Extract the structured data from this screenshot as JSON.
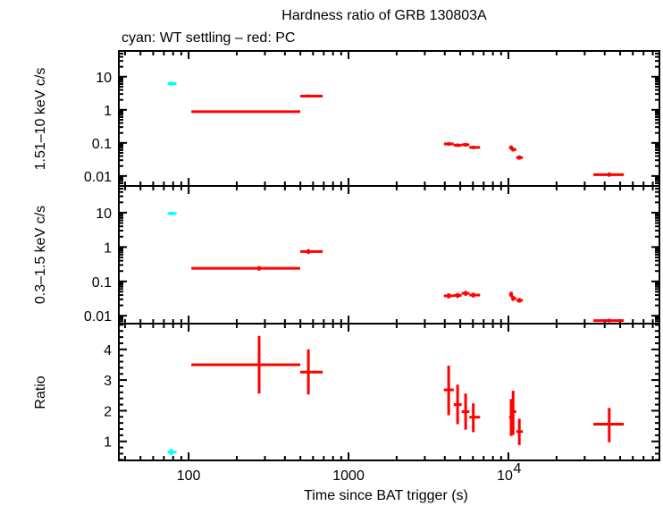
{
  "chart_data": {
    "type": "scatter",
    "title": "Hardness ratio of GRB 130803A",
    "subtitle": "cyan: WT settling – red: PC",
    "xlabel": "Time since BAT trigger (s)",
    "xscale": "log",
    "xlim": [
      36.6,
      88000
    ],
    "x_ticks": [
      {
        "value": 100,
        "label": "100"
      },
      {
        "value": 1000,
        "label": "1000"
      },
      {
        "value": 10000,
        "label": "10⁴"
      }
    ],
    "colors": {
      "WT": "#00ffff",
      "PC": "#ff0000",
      "frame": "#000000"
    },
    "panels": [
      {
        "id": "hard",
        "ylabel": "1.51–10 keV c/s",
        "yscale": "log",
        "ylim": [
          0.005,
          60
        ],
        "y_ticks": [
          {
            "value": 10,
            "label": "10"
          },
          {
            "value": 1,
            "label": "1"
          },
          {
            "value": 0.1,
            "label": "0.1"
          },
          {
            "value": 0.01,
            "label": "0.01"
          }
        ],
        "series": [
          {
            "name": "WT settling",
            "color_key": "WT",
            "points": [
              {
                "x": 78,
                "xlo": 74,
                "xhi": 84,
                "y": 6.2,
                "ylo": 5.3,
                "yhi": 7.2
              }
            ]
          },
          {
            "name": "PC",
            "color_key": "PC",
            "points": [
              {
                "x": 276,
                "xlo": 104,
                "xhi": 499,
                "y": 0.88,
                "ylo": 0.82,
                "yhi": 0.94
              },
              {
                "x": 561,
                "xlo": 499,
                "xhi": 689,
                "y": 2.6,
                "ylo": 2.35,
                "yhi": 2.9
              },
              {
                "x": 4230,
                "xlo": 3950,
                "xhi": 4550,
                "y": 0.093,
                "ylo": 0.082,
                "yhi": 0.105
              },
              {
                "x": 4810,
                "xlo": 4550,
                "xhi": 5100,
                "y": 0.085,
                "ylo": 0.075,
                "yhi": 0.096
              },
              {
                "x": 5400,
                "xlo": 5100,
                "xhi": 5700,
                "y": 0.088,
                "ylo": 0.077,
                "yhi": 0.1
              },
              {
                "x": 6030,
                "xlo": 5700,
                "xhi": 6650,
                "y": 0.073,
                "ylo": 0.065,
                "yhi": 0.082
              },
              {
                "x": 10400,
                "xlo": 10100,
                "xhi": 10700,
                "y": 0.072,
                "ylo": 0.062,
                "yhi": 0.083
              },
              {
                "x": 10700,
                "xlo": 10400,
                "xhi": 11200,
                "y": 0.063,
                "ylo": 0.055,
                "yhi": 0.072
              },
              {
                "x": 11700,
                "xlo": 11200,
                "xhi": 12300,
                "y": 0.036,
                "ylo": 0.031,
                "yhi": 0.042
              },
              {
                "x": 42700,
                "xlo": 34000,
                "xhi": 52700,
                "y": 0.011,
                "ylo": 0.0095,
                "yhi": 0.0128
              }
            ]
          }
        ]
      },
      {
        "id": "soft",
        "ylabel": "0.3–1.5 keV c/s",
        "yscale": "log",
        "ylim": [
          0.0059,
          60
        ],
        "y_ticks": [
          {
            "value": 10,
            "label": "10"
          },
          {
            "value": 1,
            "label": "1"
          },
          {
            "value": 0.1,
            "label": "0.1"
          },
          {
            "value": 0.01,
            "label": "0.01"
          }
        ],
        "series": [
          {
            "name": "WT settling",
            "color_key": "WT",
            "points": [
              {
                "x": 78,
                "xlo": 74,
                "xhi": 84,
                "y": 9.5,
                "ylo": 8.4,
                "yhi": 10.8
              }
            ]
          },
          {
            "name": "PC",
            "color_key": "PC",
            "points": [
              {
                "x": 276,
                "xlo": 104,
                "xhi": 499,
                "y": 0.24,
                "ylo": 0.205,
                "yhi": 0.28
              },
              {
                "x": 561,
                "xlo": 499,
                "xhi": 689,
                "y": 0.74,
                "ylo": 0.63,
                "yhi": 0.87
              },
              {
                "x": 4230,
                "xlo": 3950,
                "xhi": 4550,
                "y": 0.038,
                "ylo": 0.032,
                "yhi": 0.045
              },
              {
                "x": 4810,
                "xlo": 4550,
                "xhi": 5100,
                "y": 0.039,
                "ylo": 0.033,
                "yhi": 0.046
              },
              {
                "x": 5400,
                "xlo": 5100,
                "xhi": 5700,
                "y": 0.045,
                "ylo": 0.038,
                "yhi": 0.053
              },
              {
                "x": 6030,
                "xlo": 5700,
                "xhi": 6650,
                "y": 0.04,
                "ylo": 0.034,
                "yhi": 0.047
              },
              {
                "x": 10400,
                "xlo": 10100,
                "xhi": 10700,
                "y": 0.042,
                "ylo": 0.035,
                "yhi": 0.05
              },
              {
                "x": 10700,
                "xlo": 10400,
                "xhi": 11200,
                "y": 0.032,
                "ylo": 0.027,
                "yhi": 0.038
              },
              {
                "x": 11700,
                "xlo": 11200,
                "xhi": 12300,
                "y": 0.028,
                "ylo": 0.024,
                "yhi": 0.033
              },
              {
                "x": 42700,
                "xlo": 34000,
                "xhi": 52700,
                "y": 0.0072,
                "ylo": 0.0064,
                "yhi": 0.0082
              }
            ]
          }
        ]
      },
      {
        "id": "ratio",
        "ylabel": "Ratio",
        "yscale": "linear",
        "ylim": [
          0.38,
          4.84
        ],
        "y_ticks": [
          {
            "value": 1,
            "label": "1"
          },
          {
            "value": 2,
            "label": "2"
          },
          {
            "value": 3,
            "label": "3"
          },
          {
            "value": 4,
            "label": "4"
          }
        ],
        "y_minor_step": 0.2,
        "series": [
          {
            "name": "WT settling",
            "color_key": "WT",
            "points": [
              {
                "x": 78,
                "xlo": 74,
                "xhi": 84,
                "y": 0.65,
                "ylo": 0.55,
                "yhi": 0.76
              }
            ]
          },
          {
            "name": "PC",
            "color_key": "PC",
            "points": [
              {
                "x": 276,
                "xlo": 104,
                "xhi": 499,
                "y": 3.5,
                "ylo": 2.56,
                "yhi": 4.44
              },
              {
                "x": 561,
                "xlo": 499,
                "xhi": 689,
                "y": 3.26,
                "ylo": 2.53,
                "yhi": 4.0
              },
              {
                "x": 4230,
                "xlo": 3950,
                "xhi": 4550,
                "y": 2.68,
                "ylo": 1.85,
                "yhi": 3.47
              },
              {
                "x": 4810,
                "xlo": 4550,
                "xhi": 5100,
                "y": 2.2,
                "ylo": 1.56,
                "yhi": 2.85
              },
              {
                "x": 5400,
                "xlo": 5100,
                "xhi": 5700,
                "y": 1.97,
                "ylo": 1.38,
                "yhi": 2.56
              },
              {
                "x": 6030,
                "xlo": 5700,
                "xhi": 6650,
                "y": 1.79,
                "ylo": 1.3,
                "yhi": 2.24
              },
              {
                "x": 10400,
                "xlo": 10100,
                "xhi": 10700,
                "y": 1.79,
                "ylo": 1.18,
                "yhi": 2.38
              },
              {
                "x": 10700,
                "xlo": 10400,
                "xhi": 11200,
                "y": 1.97,
                "ylo": 1.21,
                "yhi": 2.65
              },
              {
                "x": 11700,
                "xlo": 11200,
                "xhi": 12300,
                "y": 1.32,
                "ylo": 0.88,
                "yhi": 1.74
              },
              {
                "x": 42700,
                "xlo": 34000,
                "xhi": 52700,
                "y": 1.56,
                "ylo": 0.97,
                "yhi": 2.09
              }
            ]
          }
        ]
      }
    ]
  }
}
